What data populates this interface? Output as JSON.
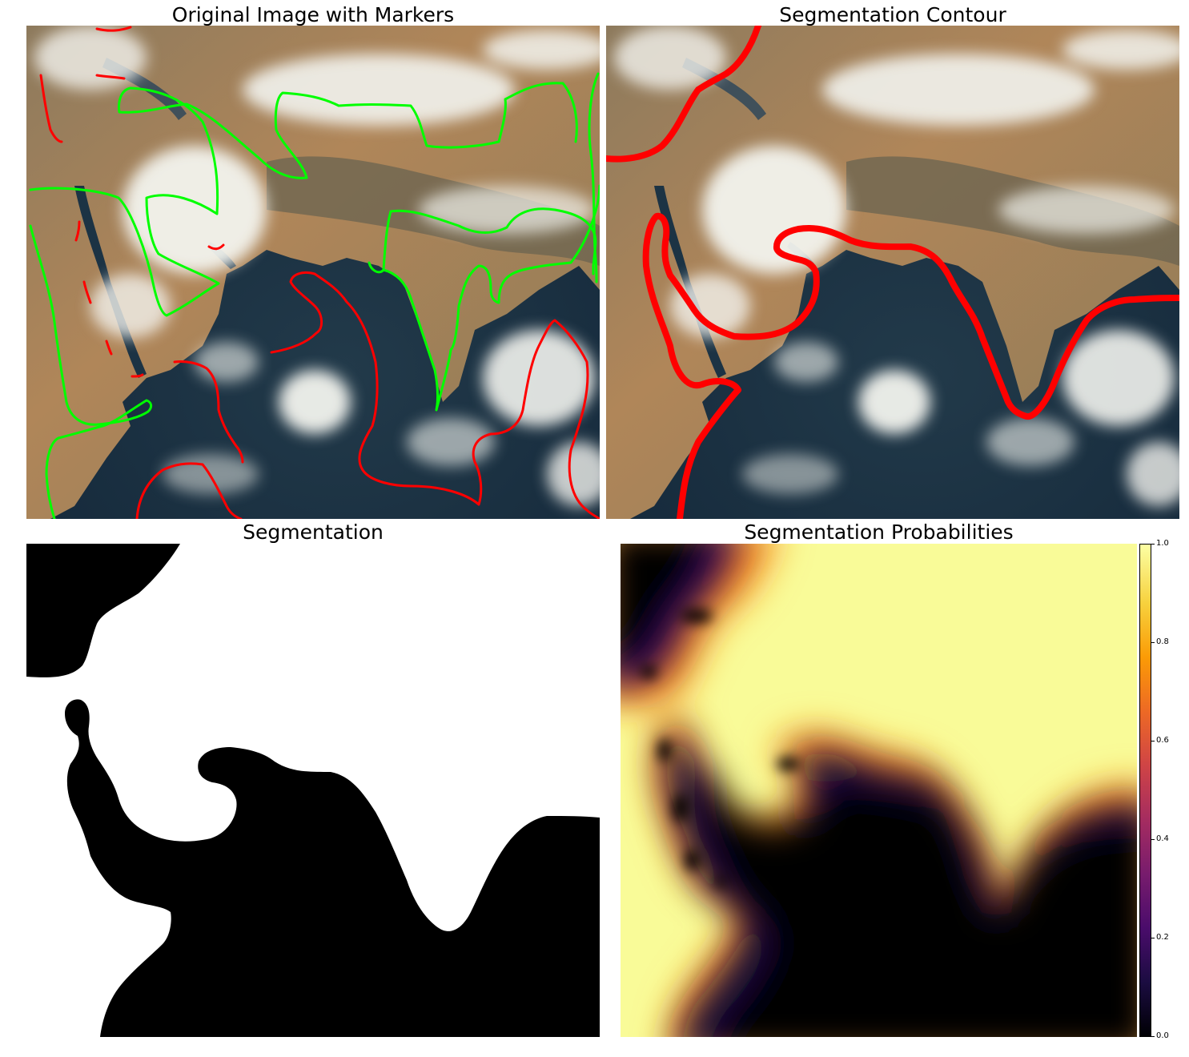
{
  "panels": {
    "markers": {
      "title": "Original Image with Markers"
    },
    "contour": {
      "title": "Segmentation Contour"
    },
    "segmentation": {
      "title": "Segmentation"
    },
    "probabilities": {
      "title": "Segmentation Probabilities"
    }
  },
  "colorbar": {
    "colormap": "inferno",
    "ticks": [
      "0.0",
      "0.2",
      "0.4",
      "0.6",
      "0.8",
      "1.0"
    ],
    "colors": [
      "#000004",
      "#1b0c41",
      "#4a0c6b",
      "#781c6d",
      "#a52c60",
      "#cf4446",
      "#ed6925",
      "#fb9b06",
      "#f7d13d",
      "#fcffa4"
    ]
  },
  "colors": {
    "marker_foreground": "#00ff00",
    "marker_background": "#ff0000",
    "contour": "#ff0000",
    "land": "#b08a5a",
    "ocean": "#1c3344",
    "cloud": "#f2f3ee"
  }
}
